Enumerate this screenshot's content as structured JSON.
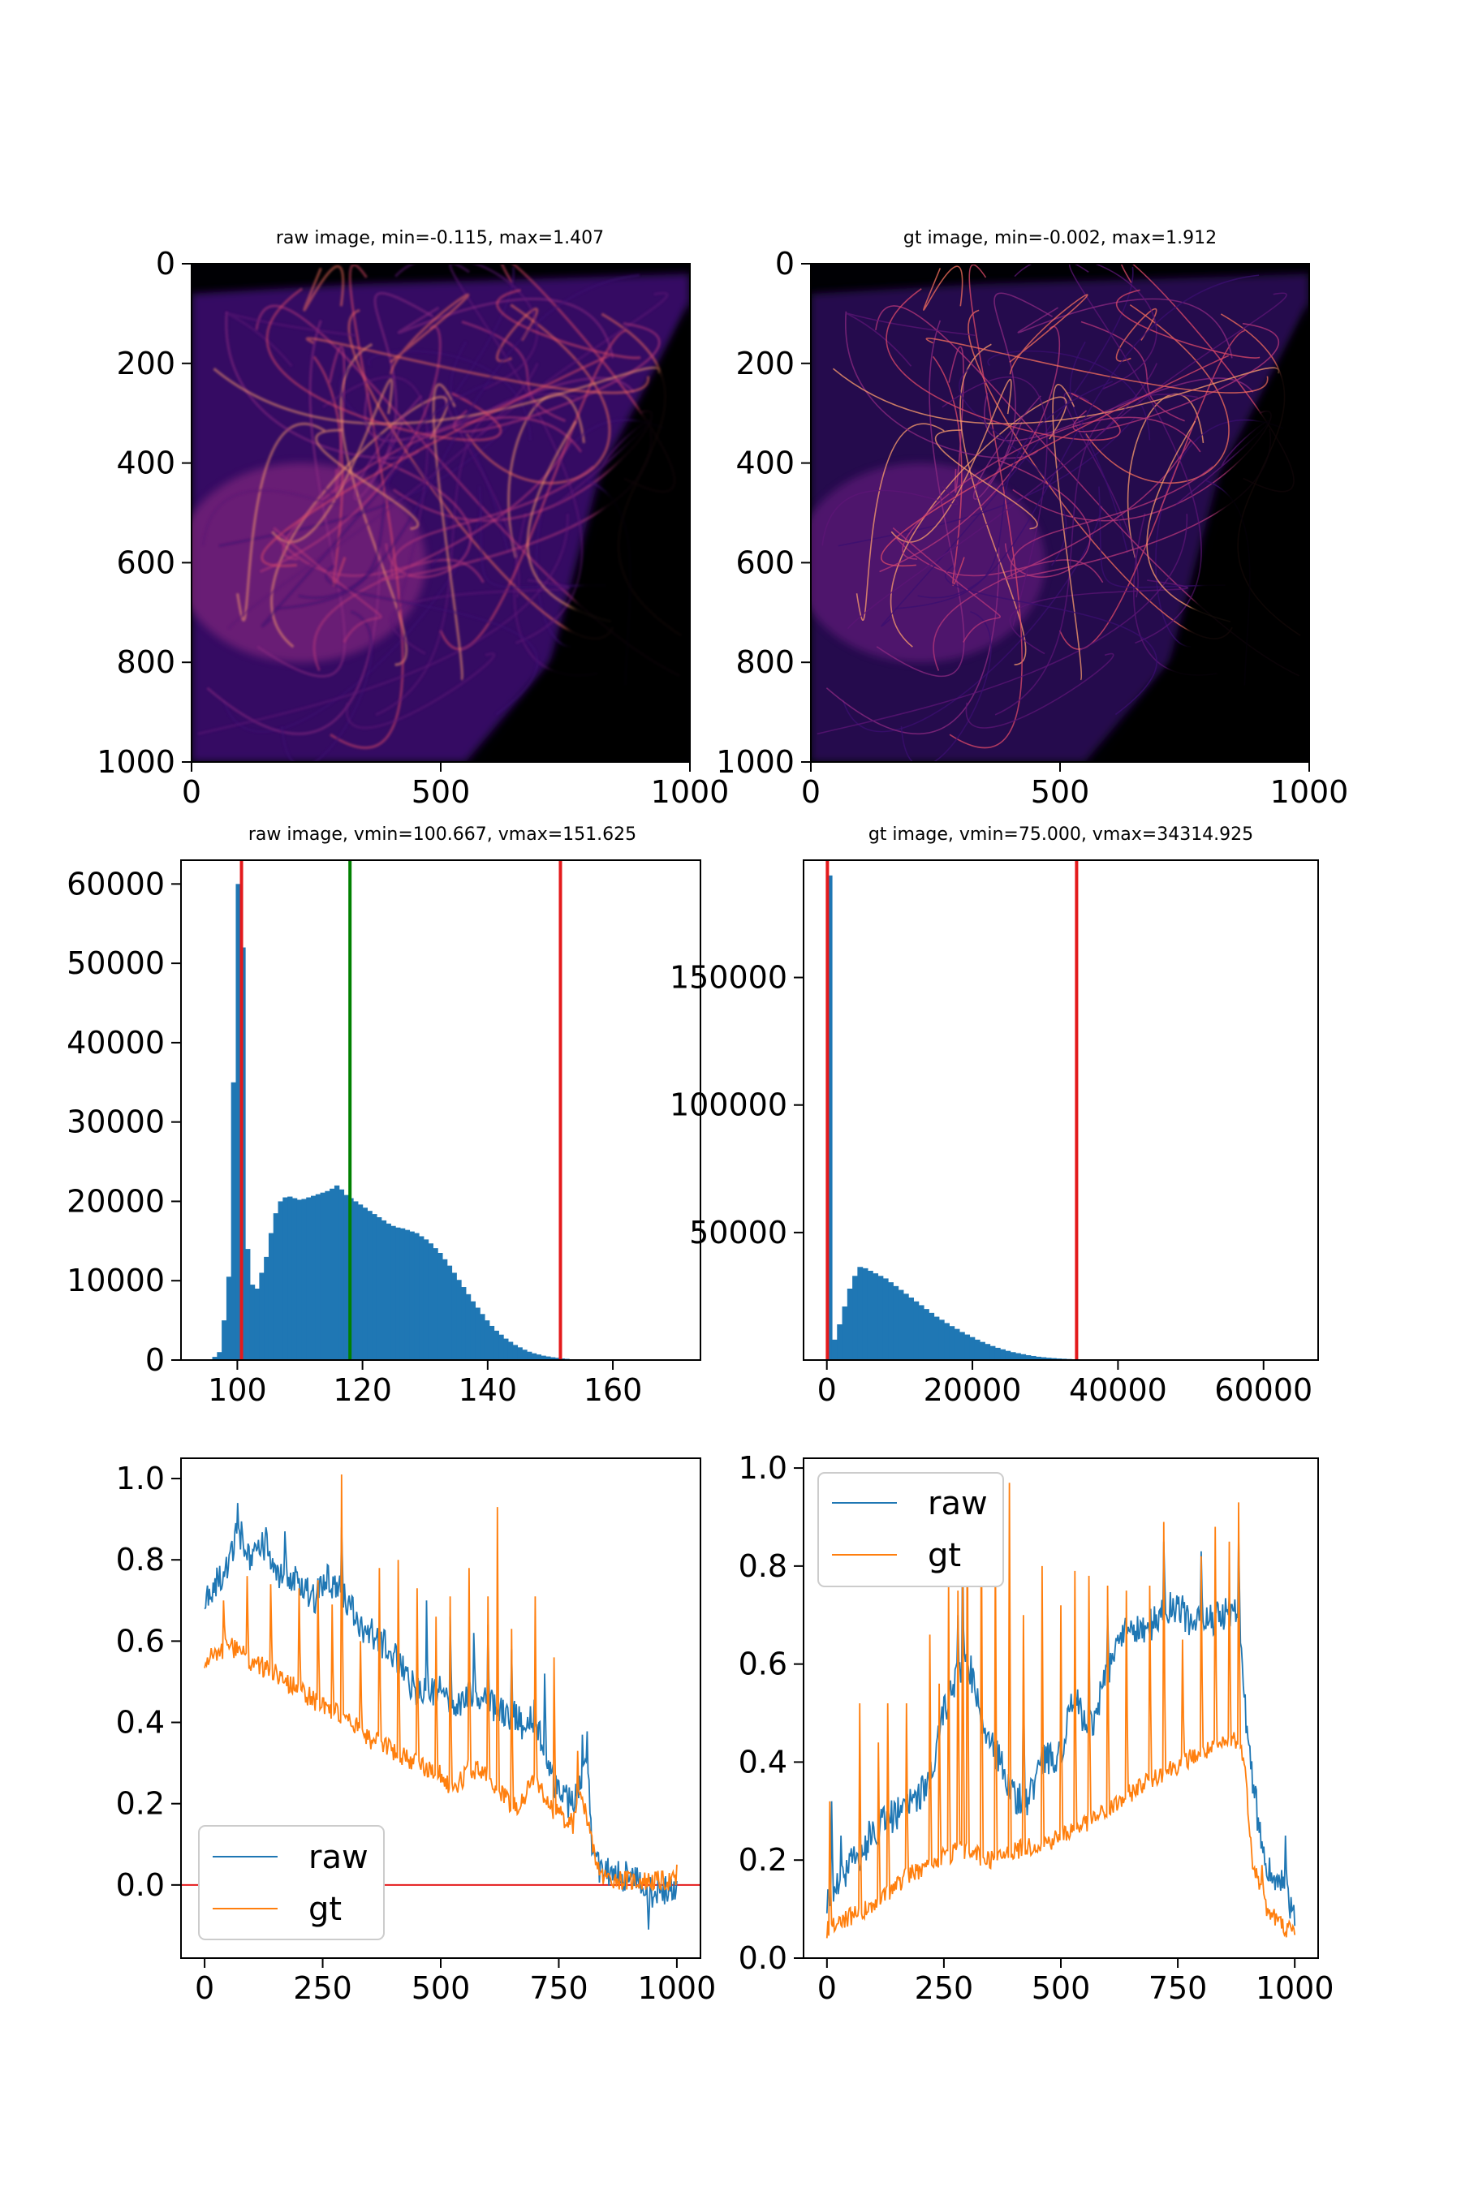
{
  "colors": {
    "raw": "#1f77b4",
    "gt": "#ff7f0e",
    "vline_red": "#e41a1c",
    "vline_green": "#008000",
    "hist_bar": "#1f77b4",
    "zero_line": "#e41a1c",
    "image_bg": "#000004"
  },
  "chart_data": [
    {
      "type": "heatmap",
      "title": "raw image, min=-0.115, max=1.407",
      "colormap": "magma",
      "xlim": [
        0,
        1000
      ],
      "ylim": [
        1000,
        0
      ],
      "xticks": [
        "0",
        "500",
        "1000"
      ],
      "yticks": [
        "0",
        "200",
        "400",
        "600",
        "800",
        "1000"
      ]
    },
    {
      "type": "heatmap",
      "title": "gt image, min=-0.002, max=1.912",
      "colormap": "magma",
      "xlim": [
        0,
        1000
      ],
      "ylim": [
        1000,
        0
      ],
      "xticks": [
        "0",
        "500",
        "1000"
      ],
      "yticks": [
        "0",
        "200",
        "400",
        "600",
        "800",
        "1000"
      ]
    },
    {
      "type": "bar",
      "title": "raw image, vmin=100.667, vmax=151.625",
      "xlim": [
        91,
        174
      ],
      "ylim": [
        0,
        63000
      ],
      "xticks": [
        100,
        120,
        140,
        160
      ],
      "yticks": [
        0,
        10000,
        20000,
        30000,
        40000,
        50000,
        60000
      ],
      "bin_edges_start": 96,
      "bin_width": 0.75,
      "counts": [
        400,
        1000,
        5000,
        10500,
        35000,
        60000,
        52000,
        14000,
        9500,
        9000,
        11000,
        13000,
        16000,
        18500,
        20000,
        20500,
        20600,
        20400,
        20200,
        20300,
        20500,
        20700,
        20900,
        21100,
        21300,
        21600,
        22000,
        21500,
        20800,
        20400,
        20000,
        19600,
        19200,
        18800,
        18400,
        18000,
        17600,
        17200,
        16900,
        16700,
        16600,
        16400,
        16200,
        16000,
        15600,
        15200,
        14700,
        14100,
        13500,
        12700,
        11900,
        11000,
        10100,
        9200,
        8300,
        7400,
        6600,
        5800,
        5000,
        4300,
        3700,
        3200,
        2700,
        2300,
        1900,
        1600,
        1300,
        1050,
        850,
        700,
        550,
        450,
        350,
        280,
        200,
        150,
        100,
        70,
        50,
        30
      ],
      "vlines": [
        {
          "x": 100.667,
          "color": "red"
        },
        {
          "x": 118,
          "color": "green"
        },
        {
          "x": 151.625,
          "color": "red"
        }
      ]
    },
    {
      "type": "bar",
      "title": "gt image, vmin=75.000, vmax=34314.925",
      "xlim": [
        -3200,
        67500
      ],
      "ylim": [
        0,
        196000
      ],
      "xticks": [
        0,
        20000,
        40000,
        60000
      ],
      "yticks": [
        50000,
        100000,
        150000
      ],
      "bin_edges_start": 0,
      "bin_width": 700,
      "counts": [
        190000,
        8000,
        14000,
        21000,
        28000,
        33000,
        36500,
        36000,
        35000,
        34000,
        33000,
        32000,
        30500,
        29000,
        27500,
        26000,
        24500,
        23000,
        21500,
        20000,
        18500,
        17000,
        15800,
        14500,
        13300,
        12200,
        11000,
        10000,
        9000,
        8000,
        7100,
        6300,
        5500,
        4800,
        4200,
        3600,
        3100,
        2700,
        2300,
        1900,
        1600,
        1300,
        1100,
        900,
        750,
        600,
        500,
        400,
        320,
        250,
        200,
        150,
        110,
        80,
        60,
        40,
        30,
        20,
        15,
        10,
        8,
        6,
        4,
        3,
        2,
        2,
        1,
        1,
        1,
        1,
        1,
        1,
        1,
        1,
        1,
        1,
        1,
        1,
        1,
        1,
        1,
        1,
        1,
        1,
        1,
        1,
        1,
        1,
        1,
        1,
        1,
        1,
        1
      ],
      "vlines": [
        {
          "x": 75.0,
          "color": "red"
        },
        {
          "x": 34314.925,
          "color": "red"
        }
      ]
    },
    {
      "type": "line",
      "xlim": [
        -50,
        1050
      ],
      "ylim": [
        -0.18,
        1.05
      ],
      "xticks": [
        0,
        250,
        500,
        750,
        1000
      ],
      "yticks": [
        "0.0",
        "0.2",
        "0.4",
        "0.6",
        "0.8",
        "1.0"
      ],
      "legend_position": "lower-left",
      "hline": 0,
      "series": [
        {
          "name": "raw",
          "color": "blue",
          "anchors": [
            [
              0,
              0.7
            ],
            [
              30,
              0.75
            ],
            [
              60,
              0.82
            ],
            [
              70,
              0.88
            ],
            [
              100,
              0.8
            ],
            [
              130,
              0.84
            ],
            [
              150,
              0.75
            ],
            [
              200,
              0.76
            ],
            [
              230,
              0.7
            ],
            [
              260,
              0.75
            ],
            [
              290,
              0.72
            ],
            [
              330,
              0.64
            ],
            [
              370,
              0.6
            ],
            [
              400,
              0.57
            ],
            [
              450,
              0.47
            ],
            [
              500,
              0.48
            ],
            [
              530,
              0.42
            ],
            [
              560,
              0.47
            ],
            [
              600,
              0.45
            ],
            [
              620,
              0.43
            ],
            [
              650,
              0.42
            ],
            [
              680,
              0.39
            ],
            [
              700,
              0.42
            ],
            [
              720,
              0.33
            ],
            [
              740,
              0.25
            ],
            [
              760,
              0.21
            ],
            [
              780,
              0.2
            ],
            [
              800,
              0.28
            ],
            [
              810,
              0.34
            ],
            [
              820,
              0.1
            ],
            [
              840,
              0.03
            ],
            [
              900,
              0.02
            ],
            [
              950,
              -0.02
            ],
            [
              1000,
              0.0
            ]
          ],
          "noise": 0.04,
          "spikes": [
            [
              70,
              0.94
            ],
            [
              130,
              0.88
            ],
            [
              170,
              0.87
            ],
            [
              290,
              0.88
            ],
            [
              470,
              0.7
            ],
            [
              520,
              0.66
            ],
            [
              570,
              0.62
            ],
            [
              600,
              0.64
            ],
            [
              650,
              0.58
            ],
            [
              720,
              0.52
            ],
            [
              800,
              0.37
            ],
            [
              940,
              -0.11
            ]
          ]
        },
        {
          "name": "gt",
          "color": "orange",
          "anchors": [
            [
              0,
              0.55
            ],
            [
              50,
              0.59
            ],
            [
              100,
              0.55
            ],
            [
              150,
              0.52
            ],
            [
              200,
              0.48
            ],
            [
              250,
              0.44
            ],
            [
              300,
              0.41
            ],
            [
              350,
              0.36
            ],
            [
              400,
              0.33
            ],
            [
              450,
              0.3
            ],
            [
              500,
              0.27
            ],
            [
              530,
              0.23
            ],
            [
              560,
              0.29
            ],
            [
              600,
              0.27
            ],
            [
              630,
              0.22
            ],
            [
              660,
              0.19
            ],
            [
              700,
              0.26
            ],
            [
              740,
              0.18
            ],
            [
              780,
              0.15
            ],
            [
              800,
              0.22
            ],
            [
              820,
              0.1
            ],
            [
              840,
              0.02
            ],
            [
              900,
              0.01
            ],
            [
              1000,
              0.01
            ]
          ],
          "noise": 0.025,
          "spikes": [
            [
              40,
              0.7
            ],
            [
              90,
              0.76
            ],
            [
              140,
              0.74
            ],
            [
              200,
              0.73
            ],
            [
              240,
              0.75
            ],
            [
              270,
              0.69
            ],
            [
              290,
              1.01
            ],
            [
              330,
              0.6
            ],
            [
              370,
              0.78
            ],
            [
              410,
              0.8
            ],
            [
              450,
              0.73
            ],
            [
              490,
              0.66
            ],
            [
              520,
              0.71
            ],
            [
              560,
              0.78
            ],
            [
              600,
              0.71
            ],
            [
              620,
              0.93
            ],
            [
              650,
              0.63
            ],
            [
              700,
              0.71
            ],
            [
              740,
              0.56
            ],
            [
              790,
              0.33
            ],
            [
              1000,
              0.05
            ]
          ]
        }
      ]
    },
    {
      "type": "line",
      "xlim": [
        -50,
        1050
      ],
      "ylim": [
        0,
        1.02
      ],
      "xticks": [
        0,
        250,
        500,
        750,
        1000
      ],
      "yticks": [
        "0.0",
        "0.2",
        "0.4",
        "0.6",
        "0.8",
        "1.0"
      ],
      "legend_position": "upper-left",
      "hline": 0,
      "series": [
        {
          "name": "raw",
          "color": "blue",
          "anchors": [
            [
              0,
              0.12
            ],
            [
              40,
              0.18
            ],
            [
              80,
              0.22
            ],
            [
              120,
              0.28
            ],
            [
              160,
              0.3
            ],
            [
              200,
              0.33
            ],
            [
              230,
              0.4
            ],
            [
              250,
              0.5
            ],
            [
              270,
              0.55
            ],
            [
              300,
              0.62
            ],
            [
              330,
              0.48
            ],
            [
              360,
              0.42
            ],
            [
              400,
              0.33
            ],
            [
              430,
              0.32
            ],
            [
              460,
              0.4
            ],
            [
              500,
              0.42
            ],
            [
              530,
              0.54
            ],
            [
              560,
              0.46
            ],
            [
              600,
              0.58
            ],
            [
              640,
              0.68
            ],
            [
              680,
              0.66
            ],
            [
              720,
              0.72
            ],
            [
              760,
              0.7
            ],
            [
              800,
              0.68
            ],
            [
              850,
              0.7
            ],
            [
              880,
              0.72
            ],
            [
              900,
              0.43
            ],
            [
              920,
              0.3
            ],
            [
              940,
              0.18
            ],
            [
              970,
              0.15
            ],
            [
              1000,
              0.09
            ]
          ],
          "noise": 0.035,
          "spikes": [
            [
              10,
              0.32
            ],
            [
              30,
              0.25
            ],
            [
              90,
              0.28
            ],
            [
              280,
              0.7
            ],
            [
              290,
              0.86
            ],
            [
              420,
              0.57
            ],
            [
              560,
              0.64
            ],
            [
              600,
              0.7
            ],
            [
              720,
              0.85
            ],
            [
              760,
              0.74
            ],
            [
              800,
              0.83
            ],
            [
              880,
              0.86
            ],
            [
              920,
              0.26
            ],
            [
              980,
              0.25
            ]
          ]
        },
        {
          "name": "gt",
          "color": "orange",
          "anchors": [
            [
              0,
              0.06
            ],
            [
              40,
              0.08
            ],
            [
              80,
              0.1
            ],
            [
              120,
              0.12
            ],
            [
              160,
              0.16
            ],
            [
              200,
              0.18
            ],
            [
              240,
              0.2
            ],
            [
              280,
              0.22
            ],
            [
              320,
              0.21
            ],
            [
              360,
              0.2
            ],
            [
              400,
              0.22
            ],
            [
              440,
              0.23
            ],
            [
              480,
              0.24
            ],
            [
              520,
              0.26
            ],
            [
              560,
              0.28
            ],
            [
              600,
              0.3
            ],
            [
              640,
              0.33
            ],
            [
              680,
              0.36
            ],
            [
              720,
              0.38
            ],
            [
              760,
              0.4
            ],
            [
              800,
              0.42
            ],
            [
              840,
              0.43
            ],
            [
              870,
              0.45
            ],
            [
              890,
              0.42
            ],
            [
              910,
              0.2
            ],
            [
              940,
              0.1
            ],
            [
              970,
              0.07
            ],
            [
              1000,
              0.05
            ]
          ],
          "noise": 0.02,
          "spikes": [
            [
              5,
              0.32
            ],
            [
              70,
              0.52
            ],
            [
              110,
              0.44
            ],
            [
              130,
              0.52
            ],
            [
              170,
              0.52
            ],
            [
              220,
              0.66
            ],
            [
              240,
              0.56
            ],
            [
              260,
              0.77
            ],
            [
              280,
              0.75
            ],
            [
              290,
              0.88
            ],
            [
              300,
              0.95
            ],
            [
              330,
              0.96
            ],
            [
              360,
              0.86
            ],
            [
              390,
              0.97
            ],
            [
              420,
              0.7
            ],
            [
              460,
              0.8
            ],
            [
              500,
              0.72
            ],
            [
              530,
              0.79
            ],
            [
              560,
              0.78
            ],
            [
              600,
              0.76
            ],
            [
              640,
              0.75
            ],
            [
              690,
              0.76
            ],
            [
              720,
              0.89
            ],
            [
              760,
              0.65
            ],
            [
              800,
              0.82
            ],
            [
              830,
              0.88
            ],
            [
              860,
              0.85
            ],
            [
              880,
              0.93
            ],
            [
              930,
              0.19
            ]
          ]
        }
      ]
    }
  ]
}
